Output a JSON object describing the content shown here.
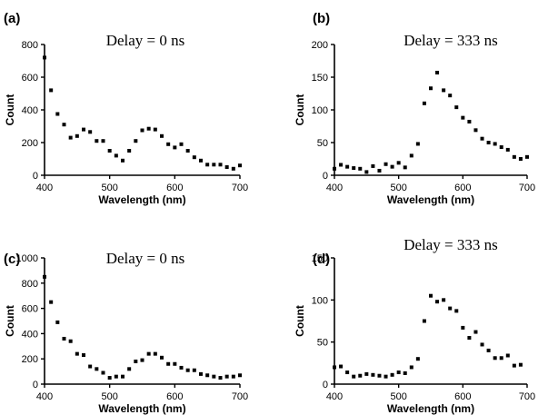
{
  "chart_data": [
    {
      "type": "scatter",
      "panel_label": "(a)",
      "annotation": "Delay = 0 ns",
      "xlabel": "Wavelength (nm)",
      "ylabel": "Count",
      "xlim": [
        400,
        700
      ],
      "ylim": [
        0,
        800
      ],
      "xticks": [
        400,
        500,
        600,
        700
      ],
      "yticks": [
        0,
        200,
        400,
        600,
        800
      ],
      "x": [
        400,
        410,
        420,
        430,
        440,
        450,
        460,
        470,
        480,
        490,
        500,
        510,
        520,
        530,
        540,
        550,
        560,
        570,
        580,
        590,
        600,
        610,
        620,
        630,
        640,
        650,
        660,
        670,
        680,
        690,
        700
      ],
      "y": [
        720,
        520,
        375,
        310,
        230,
        240,
        280,
        265,
        210,
        210,
        150,
        120,
        90,
        150,
        210,
        275,
        285,
        280,
        240,
        190,
        170,
        190,
        150,
        110,
        90,
        65,
        65,
        65,
        50,
        40,
        60
      ]
    },
    {
      "type": "scatter",
      "panel_label": "(b)",
      "annotation": "Delay = 333 ns",
      "xlabel": "Wavelength (nm)",
      "ylabel": "Count",
      "xlim": [
        400,
        700
      ],
      "ylim": [
        0,
        200
      ],
      "xticks": [
        400,
        500,
        600,
        700
      ],
      "yticks": [
        0,
        50,
        100,
        150,
        200
      ],
      "x": [
        400,
        410,
        420,
        430,
        440,
        450,
        460,
        470,
        480,
        490,
        500,
        510,
        520,
        530,
        540,
        550,
        560,
        570,
        580,
        590,
        600,
        610,
        620,
        630,
        640,
        650,
        660,
        670,
        680,
        690,
        700
      ],
      "y": [
        10,
        16,
        13,
        11,
        10,
        5,
        14,
        7,
        17,
        13,
        19,
        12,
        30,
        48,
        110,
        133,
        157,
        130,
        122,
        104,
        88,
        82,
        69,
        56,
        50,
        48,
        43,
        39,
        28,
        25,
        28
      ]
    },
    {
      "type": "scatter",
      "panel_label": "(c)",
      "annotation": "Delay = 0 ns",
      "xlabel": "Wavelength (nm)",
      "ylabel": "Count",
      "xlim": [
        400,
        700
      ],
      "ylim": [
        0,
        1000
      ],
      "xticks": [
        400,
        500,
        600,
        700
      ],
      "yticks": [
        0,
        200,
        400,
        600,
        800,
        1000
      ],
      "x": [
        400,
        410,
        420,
        430,
        440,
        450,
        460,
        470,
        480,
        490,
        500,
        510,
        520,
        530,
        540,
        550,
        560,
        570,
        580,
        590,
        600,
        610,
        620,
        630,
        640,
        650,
        660,
        670,
        680,
        690,
        700
      ],
      "y": [
        850,
        650,
        490,
        360,
        340,
        240,
        230,
        140,
        120,
        90,
        50,
        60,
        60,
        120,
        180,
        190,
        240,
        240,
        210,
        160,
        160,
        130,
        110,
        110,
        80,
        70,
        60,
        50,
        60,
        60,
        70
      ]
    },
    {
      "type": "scatter",
      "panel_label": "(d)",
      "annotation": "Delay = 333 ns",
      "xlabel": "Wavelength (nm)",
      "ylabel": "Count",
      "xlim": [
        400,
        700
      ],
      "ylim": [
        0,
        150
      ],
      "xticks": [
        400,
        500,
        600,
        700
      ],
      "yticks": [
        0,
        50,
        100,
        150
      ],
      "x": [
        400,
        410,
        420,
        430,
        440,
        450,
        460,
        470,
        480,
        490,
        500,
        510,
        520,
        530,
        540,
        550,
        560,
        570,
        580,
        590,
        600,
        610,
        620,
        630,
        640,
        650,
        660,
        670,
        680,
        690,
        700
      ],
      "y": [
        20,
        21,
        14,
        9,
        10,
        12,
        11,
        10,
        9,
        11,
        14,
        13,
        20,
        30,
        75,
        105,
        98,
        100,
        90,
        87,
        67,
        55,
        62,
        47,
        40,
        31,
        31,
        34,
        22,
        23,
        null
      ]
    }
  ]
}
